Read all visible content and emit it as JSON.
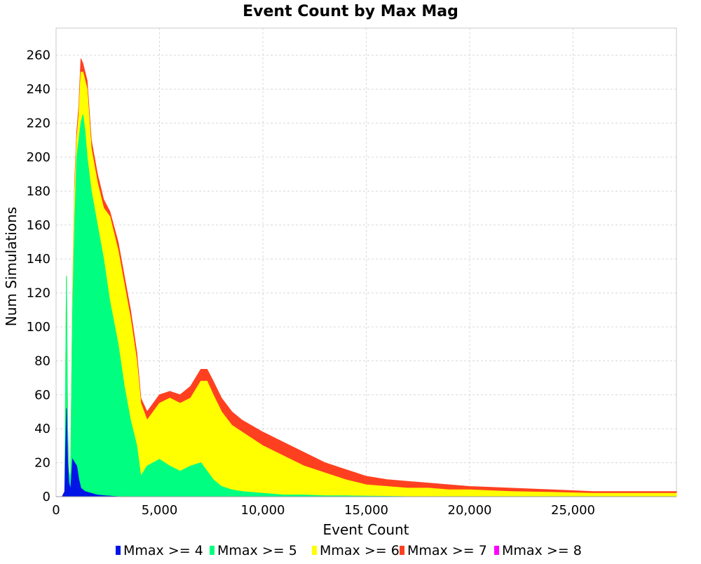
{
  "chart_data": {
    "type": "area",
    "title": "Event Count by Max Mag",
    "xlabel": "Event Count",
    "ylabel": "Num Simulations",
    "xlim": [
      0,
      30000
    ],
    "ylim": [
      0,
      276
    ],
    "x_ticks": [
      0,
      5000,
      10000,
      15000,
      20000,
      25000
    ],
    "x_tick_labels": [
      "0",
      "5,000",
      "10,000",
      "15,000",
      "20,000",
      "25,000"
    ],
    "y_ticks": [
      0,
      20,
      40,
      60,
      80,
      100,
      120,
      140,
      160,
      180,
      200,
      220,
      240,
      260
    ],
    "y_tick_labels": [
      "0",
      "20",
      "40",
      "60",
      "80",
      "100",
      "120",
      "140",
      "160",
      "180",
      "200",
      "220",
      "240",
      "260"
    ],
    "grid": true,
    "stacked": true,
    "legend_position": "bottom",
    "series": [
      {
        "name": "Mmax >= 4",
        "color": "#0015e6",
        "x": [
          300,
          420,
          500,
          560,
          620,
          700,
          800,
          900,
          1000,
          1100,
          1200,
          1400,
          1700,
          2000,
          2400,
          3000,
          30000
        ],
        "y": [
          0,
          3,
          52,
          20,
          8,
          4,
          22,
          20,
          18,
          10,
          5,
          3,
          2,
          1,
          0.5,
          0,
          0
        ]
      },
      {
        "name": "Mmax >= 5",
        "color": "#00ff80",
        "x": [
          300,
          420,
          500,
          560,
          620,
          700,
          800,
          900,
          1000,
          1100,
          1200,
          1300,
          1400,
          1500,
          1700,
          2000,
          2300,
          2600,
          3000,
          3300,
          3600,
          3900,
          4100,
          4400,
          5000,
          5500,
          6000,
          6500,
          7000,
          7300,
          7600,
          8000,
          8500,
          9000,
          10000,
          11000,
          12000,
          13000,
          14000,
          15000,
          16000,
          17000,
          30000
        ],
        "y": [
          0,
          3,
          130,
          40,
          15,
          10,
          110,
          160,
          200,
          210,
          220,
          225,
          215,
          200,
          180,
          160,
          140,
          115,
          90,
          65,
          45,
          30,
          12,
          18,
          22,
          18,
          15,
          18,
          20,
          15,
          10,
          6,
          4,
          3,
          2,
          1,
          1,
          0.5,
          0.5,
          0.3,
          0.2,
          0,
          0
        ]
      },
      {
        "name": "Mmax >= 6",
        "color": "#ffff00",
        "x": [
          300,
          420,
          500,
          560,
          620,
          700,
          800,
          900,
          1000,
          1100,
          1200,
          1300,
          1400,
          1500,
          1700,
          2000,
          2300,
          2600,
          3000,
          3300,
          3600,
          3900,
          4100,
          4400,
          5000,
          5500,
          6000,
          6500,
          7000,
          7300,
          7600,
          8000,
          8500,
          9000,
          10000,
          11000,
          12000,
          13000,
          14000,
          15000,
          16000,
          17000,
          18000,
          19000,
          20000,
          22000,
          24000,
          26000,
          28000,
          30000
        ],
        "y": [
          0,
          3,
          130,
          40,
          15,
          10,
          115,
          180,
          210,
          225,
          250,
          250,
          245,
          240,
          205,
          185,
          170,
          165,
          145,
          125,
          105,
          80,
          55,
          45,
          55,
          58,
          55,
          58,
          68,
          68,
          60,
          50,
          42,
          38,
          30,
          24,
          18,
          14,
          10,
          7,
          6,
          5,
          5,
          4,
          4,
          3,
          2.5,
          2,
          2,
          2
        ]
      },
      {
        "name": "Mmax >= 7",
        "color": "#ff4020",
        "x": [
          300,
          420,
          500,
          560,
          620,
          700,
          800,
          900,
          1000,
          1100,
          1200,
          1300,
          1400,
          1500,
          1700,
          2000,
          2300,
          2600,
          3000,
          3300,
          3600,
          3900,
          4100,
          4400,
          5000,
          5500,
          6000,
          6500,
          7000,
          7300,
          7600,
          8000,
          8500,
          9000,
          10000,
          11000,
          12000,
          13000,
          14000,
          15000,
          16000,
          17000,
          18000,
          19000,
          20000,
          22000,
          24000,
          26000,
          28000,
          30000
        ],
        "y": [
          0,
          3,
          130,
          40,
          15,
          10,
          118,
          185,
          215,
          230,
          258,
          255,
          250,
          245,
          210,
          190,
          175,
          168,
          150,
          130,
          110,
          85,
          58,
          50,
          60,
          62,
          60,
          65,
          75,
          75,
          68,
          58,
          50,
          45,
          38,
          32,
          26,
          20,
          16,
          12,
          10,
          9,
          8,
          7,
          6,
          5,
          4,
          3,
          3,
          3
        ]
      },
      {
        "name": "Mmax >= 8",
        "color": "#ff00ff",
        "x": [
          0,
          30000
        ],
        "y": [
          0,
          0
        ]
      }
    ]
  }
}
